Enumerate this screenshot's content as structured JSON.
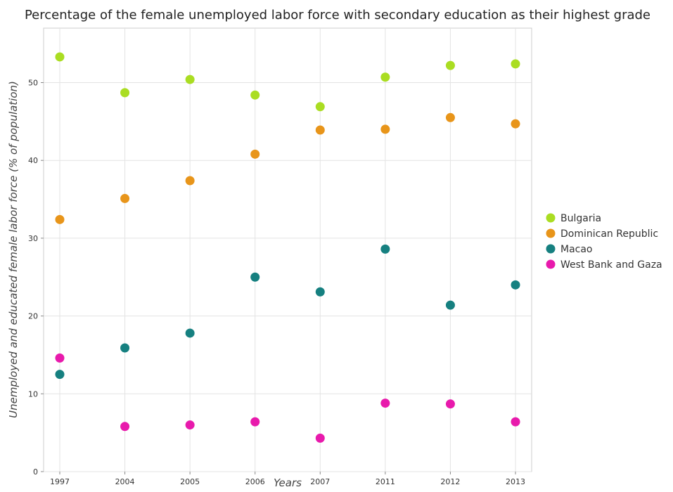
{
  "chart_data": {
    "type": "scatter",
    "title": "Percentage of the female unemployed labor force with secondary education as their highest grade",
    "xlabel": "Years",
    "ylabel": "Unemployed and educated female labor force (% of population)",
    "categories": [
      "1997",
      "2004",
      "2005",
      "2006",
      "2007",
      "2011",
      "2012",
      "2013"
    ],
    "ylim": [
      0,
      57
    ],
    "yticks": [
      0,
      10,
      20,
      30,
      40,
      50
    ],
    "grid": true,
    "legend_position": "right",
    "series": [
      {
        "name": "Bulgaria",
        "color": "#aadd22",
        "values": [
          53.3,
          48.7,
          50.4,
          48.4,
          46.9,
          50.7,
          52.2,
          52.4
        ]
      },
      {
        "name": "Dominican Republic",
        "color": "#e8951a",
        "values": [
          32.4,
          35.1,
          37.4,
          40.8,
          43.9,
          44.0,
          45.5,
          44.7
        ]
      },
      {
        "name": "Macao",
        "color": "#168080",
        "values": [
          12.5,
          15.9,
          17.8,
          25.0,
          23.1,
          28.6,
          21.4,
          24.0
        ]
      },
      {
        "name": "West Bank and Gaza",
        "color": "#e81aac",
        "values": [
          14.6,
          5.8,
          6.0,
          6.4,
          4.3,
          8.8,
          8.7,
          6.4
        ]
      }
    ]
  }
}
